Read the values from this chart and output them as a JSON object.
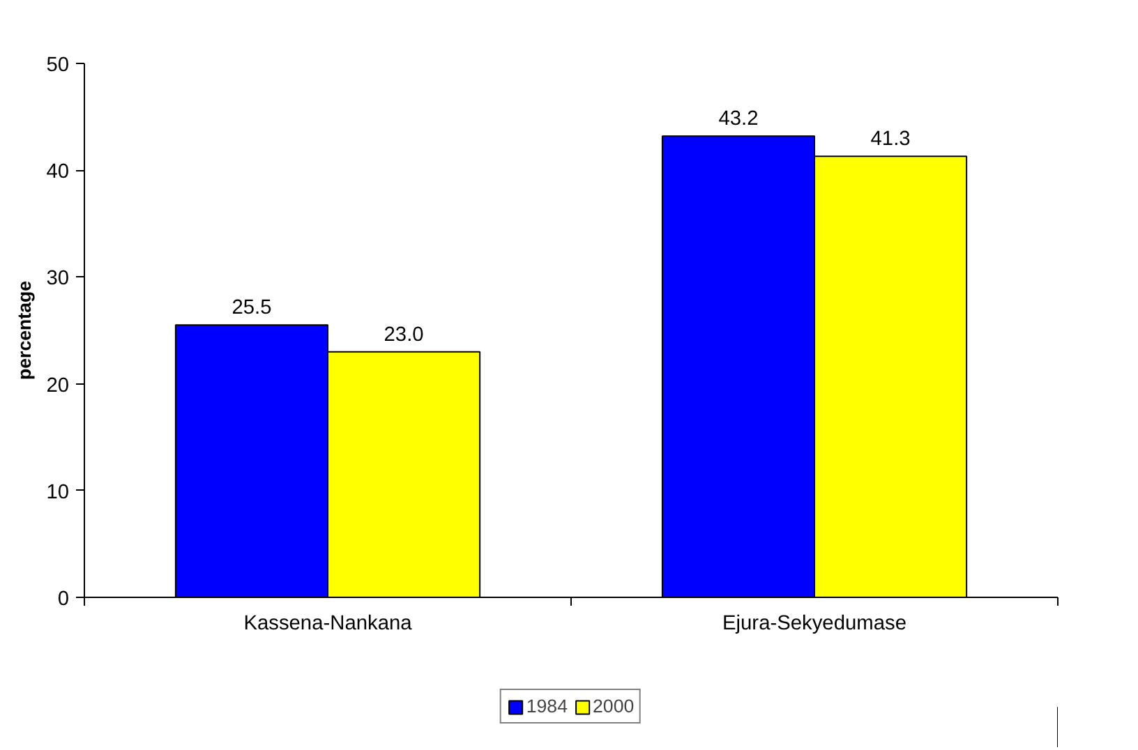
{
  "chart_data": {
    "type": "bar",
    "ylabel": "percentage",
    "categories": [
      "Kassena-Nankana",
      "Ejura-Sekyedumase"
    ],
    "series": [
      {
        "name": "1984",
        "color": "#0000ff",
        "values": [
          25.5,
          43.2
        ],
        "value_labels": [
          "25.5",
          "43.2"
        ]
      },
      {
        "name": "2000",
        "color": "#ffff00",
        "values": [
          23.0,
          41.3
        ],
        "value_labels": [
          "23.0",
          "41.3"
        ]
      }
    ],
    "ylim": [
      0,
      50
    ],
    "yticks": [
      0,
      10,
      20,
      30,
      40,
      50
    ],
    "grid": false,
    "legend": "bottom"
  }
}
